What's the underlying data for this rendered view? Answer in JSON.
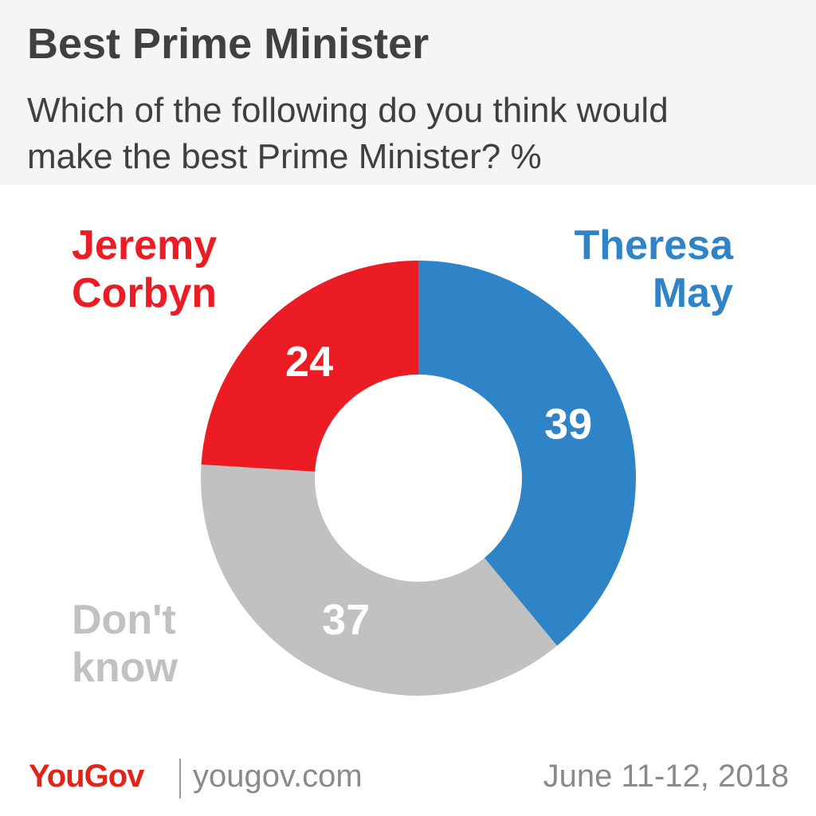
{
  "chart_data": {
    "type": "pie",
    "donut": true,
    "title": "Best Prime Minister",
    "subtitle": "Which of the following do you think would make the best Prime Minister? %",
    "categories": [
      "Theresa May",
      "Don't know",
      "Jeremy Corbyn"
    ],
    "values": [
      39,
      37,
      24
    ],
    "colors": [
      "#2e84c6",
      "#c1c1c1",
      "#ec1c24"
    ]
  },
  "footer": {
    "logo": "YouGov",
    "website": "yougov.com",
    "date": "June 11-12, 2018"
  }
}
